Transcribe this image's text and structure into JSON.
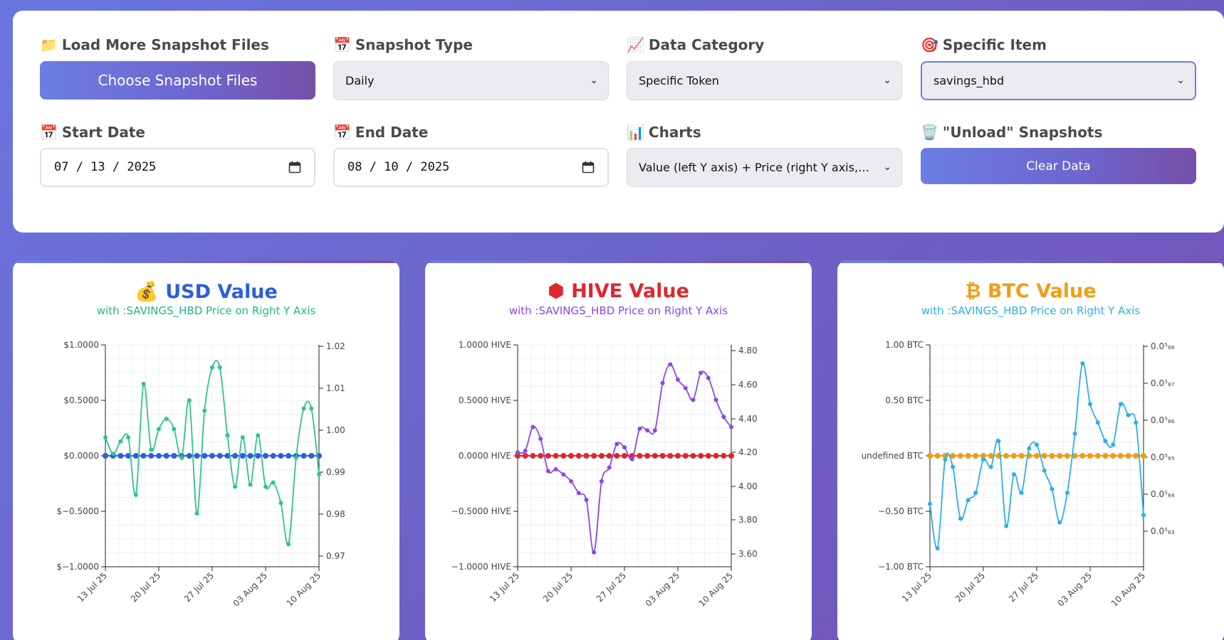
{
  "controls": {
    "load": {
      "icon": "📁",
      "label": "Load More Snapshot Files",
      "button": "Choose Snapshot Files"
    },
    "snapshot_type": {
      "icon": "📅",
      "label": "Snapshot Type",
      "value": "Daily"
    },
    "data_category": {
      "icon": "📈",
      "label": "Data Category",
      "value": "Specific Token"
    },
    "specific_item": {
      "icon": "🎯",
      "label": "Specific Item",
      "value": "savings_hbd"
    },
    "start_date": {
      "icon": "📅",
      "label": "Start Date",
      "value": "07 / 13 / 2025"
    },
    "end_date": {
      "icon": "📅",
      "label": "End Date",
      "value": "08 / 10 / 2025"
    },
    "charts": {
      "icon": "📊",
      "label": "Charts",
      "value": "Value (left Y axis) + Price (right Y axis, wh..."
    },
    "unload": {
      "icon": "🗑️",
      "label": "\"Unload\" Snapshots",
      "button": "Clear Data"
    }
  },
  "colors": {
    "usd_title": "#2b5ee0",
    "usd_sub": "#22b58a",
    "usd_value": "#2b5ee0",
    "usd_price": "#2ec48f",
    "hive_title": "#e0252f",
    "hive_sub": "#8c46e8",
    "hive_value": "#e0252f",
    "hive_price": "#8c46e8",
    "btc_title": "#f39c12",
    "btc_sub": "#2ab0ea",
    "btc_value": "#f39c12",
    "btc_price": "#2ab0ea"
  },
  "chart_data": [
    {
      "type": "line",
      "icon": "💰",
      "title": "USD Value",
      "subtitle": "with :SAVINGS_HBD Price on Right Y Axis",
      "x_tick_labels": [
        "13 Jul 25",
        "20 Jul 25",
        "27 Jul 25",
        "03 Aug 25",
        "10 Aug 25"
      ],
      "left_axis": {
        "ticks": [
          "$1.0000",
          "$0.5000",
          "$0.0000",
          "$−0.5000",
          "$−1.0000"
        ],
        "ylim": [
          -1,
          1
        ]
      },
      "right_axis": {
        "ticks": [
          "1.02",
          "1.01",
          "1.00",
          "0.99",
          "0.98",
          "0.97"
        ],
        "ylim": [
          0.967,
          1.021
        ]
      },
      "series": [
        {
          "name": "USD Value",
          "axis": "left",
          "values": [
            0,
            0,
            0,
            0,
            0,
            0,
            0,
            0,
            0,
            0,
            0,
            0,
            0,
            0,
            0,
            0,
            0,
            0,
            0,
            0,
            0,
            0,
            0,
            0,
            0,
            0,
            0,
            0,
            0
          ]
        },
        {
          "name": ":SAVINGS_HBD Price",
          "axis": "right",
          "values": [
            0.9985,
            0.9945,
            0.9975,
            0.9985,
            0.9845,
            1.0115,
            0.9955,
            1.0005,
            1.003,
            1.0005,
            0.9935,
            1.0075,
            0.98,
            1.005,
            1.0155,
            1.0155,
            0.999,
            0.9865,
            0.9985,
            0.987,
            0.999,
            0.9865,
            0.9875,
            0.9825,
            0.9725,
            0.9935,
            1.0055,
            1.0055,
            0.9895
          ]
        }
      ]
    },
    {
      "type": "line",
      "icon": "⬢",
      "title": "HIVE Value",
      "subtitle": "with :SAVINGS_HBD Price on Right Y Axis",
      "x_tick_labels": [
        "13 Jul 25",
        "20 Jul 25",
        "27 Jul 25",
        "03 Aug 25",
        "10 Aug 25"
      ],
      "left_axis": {
        "ticks": [
          "1.0000 HIVE",
          "0.5000 HIVE",
          "0.0000 HIVE",
          "−0.5000 HIVE",
          "−1.0000 HIVE"
        ],
        "ylim": [
          -1,
          1
        ]
      },
      "right_axis": {
        "ticks": [
          "4.80",
          "4.60",
          "4.40",
          "4.20",
          "4.00",
          "3.80",
          "3.60"
        ],
        "ylim": [
          3.525,
          4.835
        ]
      },
      "series": [
        {
          "name": "HIVE Value",
          "axis": "left",
          "values": [
            0,
            0,
            0,
            0,
            0,
            0,
            0,
            0,
            0,
            0,
            0,
            0,
            0,
            0,
            0,
            0,
            0,
            0,
            0,
            0,
            0,
            0,
            0,
            0,
            0,
            0,
            0,
            0,
            0
          ]
        },
        {
          "name": ":SAVINGS_HBD Price",
          "axis": "right",
          "values": [
            4.2,
            4.21,
            4.35,
            4.28,
            4.09,
            4.1,
            4.07,
            4.03,
            3.96,
            3.92,
            3.61,
            4.03,
            4.11,
            4.25,
            4.23,
            4.16,
            4.34,
            4.33,
            4.33,
            4.61,
            4.72,
            4.63,
            4.58,
            4.51,
            4.67,
            4.64,
            4.51,
            4.41,
            4.35
          ]
        }
      ]
    },
    {
      "type": "line",
      "icon": "₿",
      "title": "BTC Value",
      "subtitle": "with :SAVINGS_HBD Price on Right Y Axis",
      "x_tick_labels": [
        "13 Jul 25",
        "20 Jul 25",
        "27 Jul 25",
        "03 Aug 25",
        "10 Aug 25"
      ],
      "left_axis": {
        "ticks": [
          "1.00 BTC",
          "0.50 BTC",
          "undefined BTC",
          "−0.50 BTC",
          "−1.00 BTC"
        ],
        "ylim": [
          -1,
          1
        ]
      },
      "right_axis": {
        "ticks": [
          "0.0⁵₈₈",
          "0.0⁵₈₇",
          "0.0⁵₈₆",
          "0.0⁵₈₅",
          "0.0⁵₈₄",
          "0.0⁵₈₃"
        ],
        "ylim": [
          82.3,
          88.3
        ]
      },
      "series": [
        {
          "name": "BTC Value",
          "axis": "left",
          "values": [
            0,
            0,
            0,
            0,
            0,
            0,
            0,
            0,
            0,
            0,
            0,
            0,
            0,
            0,
            0,
            0,
            0,
            0,
            0,
            0,
            0,
            0,
            0,
            0,
            0,
            0,
            0,
            0,
            0
          ]
        },
        {
          "name": ":SAVINGS_HBD Price",
          "axis": "right",
          "values": [
            84.0,
            82.8,
            85.2,
            85.0,
            83.6,
            84.1,
            84.3,
            85.2,
            85.0,
            85.7,
            83.4,
            84.8,
            84.3,
            85.5,
            85.6,
            84.9,
            84.4,
            83.5,
            84.3,
            85.9,
            87.8,
            86.7,
            86.2,
            85.7,
            85.6,
            86.7,
            86.4,
            86.2,
            83.7
          ]
        }
      ]
    }
  ]
}
